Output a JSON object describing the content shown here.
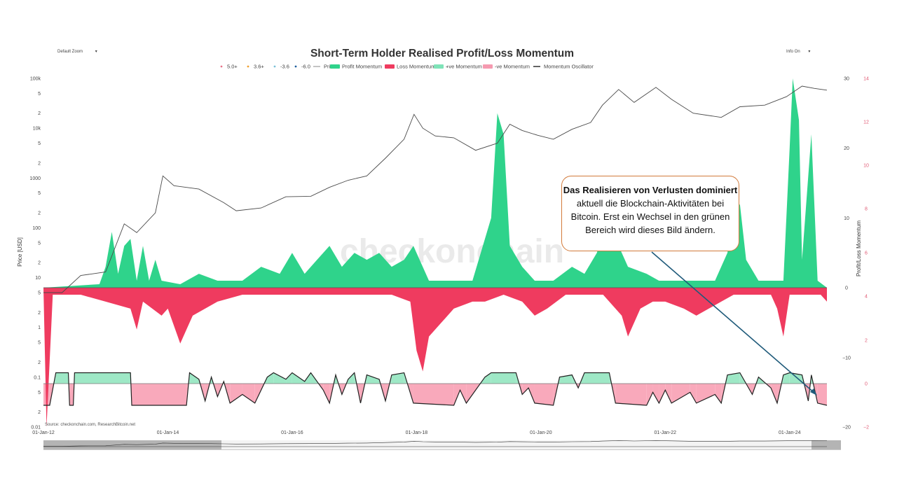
{
  "controls": {
    "zoom_label": "Default Zoom",
    "info_label": "Info On"
  },
  "chart_data": {
    "type": "line",
    "title": "Short-Term Holder Realised Profit/Loss Momentum",
    "legend": [
      {
        "name": "5.0+",
        "color": "#e8748a",
        "kind": "dot"
      },
      {
        "name": "3.6+",
        "color": "#f0a030",
        "kind": "dot"
      },
      {
        "name": "-3.6",
        "color": "#7ac0d8",
        "kind": "dot"
      },
      {
        "name": "-6.0",
        "color": "#1f5f9e",
        "kind": "dot"
      },
      {
        "name": "Price",
        "color": "#aaaaaa",
        "kind": "line"
      },
      {
        "name": "Profit Momentum",
        "color": "#2fd38b",
        "kind": "bar"
      },
      {
        "name": "Loss Momentum",
        "color": "#ef3b5f",
        "kind": "bar"
      },
      {
        "name": "+ve Momentum",
        "color": "#7fe3b8",
        "kind": "bar"
      },
      {
        "name": "-ve Momentum",
        "color": "#f59ab0",
        "kind": "bar"
      },
      {
        "name": "Momentum Oscillator",
        "color": "#222222",
        "kind": "line"
      }
    ],
    "x_ticks": [
      "01-Jan-12",
      "01-Jan-14",
      "01-Jan-16",
      "01-Jan-18",
      "01-Jan-20",
      "01-Jan-22",
      "01-Jan-24"
    ],
    "y_left": {
      "label": "Price [USD]",
      "scale": "log",
      "ticks": [
        "100k",
        "5",
        "2",
        "10k",
        "5",
        "2",
        "1000",
        "5",
        "2",
        "100",
        "5",
        "2",
        "10",
        "5",
        "2",
        "1",
        "5",
        "2",
        "0.1",
        "5",
        "2",
        "0.01"
      ]
    },
    "y_right_outer": {
      "label": "Profit/Loss Momentum",
      "ticks": [
        "14",
        "12",
        "10",
        "8",
        "6",
        "4",
        "2",
        "0",
        "−2"
      ]
    },
    "y_right_inner": {
      "ticks": [
        "30",
        "20",
        "10",
        "0",
        "−10",
        "−20"
      ]
    },
    "price": [
      [
        2012.0,
        5
      ],
      [
        2012.3,
        5
      ],
      [
        2012.6,
        11
      ],
      [
        2013.0,
        13
      ],
      [
        2013.3,
        120
      ],
      [
        2013.5,
        80
      ],
      [
        2013.8,
        200
      ],
      [
        2013.92,
        1100
      ],
      [
        2014.1,
        700
      ],
      [
        2014.5,
        600
      ],
      [
        2014.9,
        320
      ],
      [
        2015.1,
        220
      ],
      [
        2015.5,
        250
      ],
      [
        2015.9,
        420
      ],
      [
        2016.3,
        430
      ],
      [
        2016.6,
        650
      ],
      [
        2016.9,
        900
      ],
      [
        2017.2,
        1100
      ],
      [
        2017.5,
        2500
      ],
      [
        2017.8,
        6000
      ],
      [
        2017.96,
        19000
      ],
      [
        2018.1,
        10000
      ],
      [
        2018.3,
        7000
      ],
      [
        2018.6,
        6400
      ],
      [
        2018.95,
        3600
      ],
      [
        2019.3,
        5000
      ],
      [
        2019.5,
        12000
      ],
      [
        2019.7,
        9000
      ],
      [
        2019.95,
        7200
      ],
      [
        2020.2,
        6000
      ],
      [
        2020.5,
        9500
      ],
      [
        2020.8,
        13000
      ],
      [
        2020.99,
        29000
      ],
      [
        2021.25,
        60000
      ],
      [
        2021.5,
        33000
      ],
      [
        2021.85,
        66000
      ],
      [
        2022.1,
        38000
      ],
      [
        2022.45,
        20000
      ],
      [
        2022.9,
        16500
      ],
      [
        2023.2,
        27000
      ],
      [
        2023.6,
        29000
      ],
      [
        2023.95,
        43000
      ],
      [
        2024.2,
        70000
      ],
      [
        2024.4,
        63000
      ],
      [
        2024.6,
        58000
      ]
    ],
    "momentum_range": [
      -20,
      30
    ],
    "profit_momentum": [
      [
        2012.0,
        0
      ],
      [
        2012.9,
        0.5
      ],
      [
        2013.0,
        3
      ],
      [
        2013.1,
        8
      ],
      [
        2013.2,
        2
      ],
      [
        2013.3,
        6
      ],
      [
        2013.4,
        7
      ],
      [
        2013.5,
        1
      ],
      [
        2013.6,
        6
      ],
      [
        2013.7,
        1
      ],
      [
        2013.8,
        4
      ],
      [
        2013.9,
        1
      ],
      [
        2014.2,
        0.5
      ],
      [
        2014.5,
        2
      ],
      [
        2014.8,
        1
      ],
      [
        2015.2,
        1
      ],
      [
        2015.5,
        3
      ],
      [
        2015.8,
        2
      ],
      [
        2016.0,
        5
      ],
      [
        2016.2,
        2
      ],
      [
        2016.4,
        4
      ],
      [
        2016.6,
        6
      ],
      [
        2016.8,
        3
      ],
      [
        2017.0,
        5
      ],
      [
        2017.2,
        4
      ],
      [
        2017.4,
        5
      ],
      [
        2017.6,
        3
      ],
      [
        2017.8,
        4
      ],
      [
        2017.95,
        6
      ],
      [
        2018.2,
        1
      ],
      [
        2018.6,
        1
      ],
      [
        2018.9,
        1
      ],
      [
        2019.2,
        10
      ],
      [
        2019.3,
        25
      ],
      [
        2019.4,
        22
      ],
      [
        2019.5,
        6
      ],
      [
        2019.7,
        3
      ],
      [
        2019.9,
        1
      ],
      [
        2020.2,
        1
      ],
      [
        2020.5,
        3
      ],
      [
        2020.7,
        2
      ],
      [
        2020.9,
        5
      ],
      [
        2021.0,
        8
      ],
      [
        2021.2,
        7
      ],
      [
        2021.4,
        3
      ],
      [
        2021.7,
        2
      ],
      [
        2021.9,
        1
      ],
      [
        2022.2,
        1
      ],
      [
        2022.5,
        1
      ],
      [
        2022.8,
        1
      ],
      [
        2023.0,
        5
      ],
      [
        2023.1,
        10
      ],
      [
        2023.2,
        12
      ],
      [
        2023.3,
        4
      ],
      [
        2023.5,
        1
      ],
      [
        2023.9,
        1
      ],
      [
        2024.0,
        20
      ],
      [
        2024.05,
        30
      ],
      [
        2024.15,
        24
      ],
      [
        2024.2,
        4
      ],
      [
        2024.35,
        22
      ],
      [
        2024.45,
        1
      ],
      [
        2024.6,
        0
      ]
    ],
    "loss_momentum": [
      [
        2012.0,
        0
      ],
      [
        2012.05,
        -20
      ],
      [
        2012.15,
        -1
      ],
      [
        2012.6,
        -1
      ],
      [
        2013.0,
        -2
      ],
      [
        2013.4,
        -3
      ],
      [
        2013.5,
        -6
      ],
      [
        2013.6,
        -2
      ],
      [
        2013.9,
        -4
      ],
      [
        2014.0,
        -3
      ],
      [
        2014.2,
        -8
      ],
      [
        2014.3,
        -6
      ],
      [
        2014.4,
        -4
      ],
      [
        2014.6,
        -3
      ],
      [
        2014.8,
        -2
      ],
      [
        2015.2,
        -1
      ],
      [
        2015.6,
        -1
      ],
      [
        2016.0,
        -1
      ],
      [
        2016.5,
        -1
      ],
      [
        2017.0,
        -1
      ],
      [
        2017.6,
        -1
      ],
      [
        2017.9,
        -2
      ],
      [
        2018.0,
        -9
      ],
      [
        2018.1,
        -12
      ],
      [
        2018.2,
        -7
      ],
      [
        2018.4,
        -5
      ],
      [
        2018.6,
        -3
      ],
      [
        2018.9,
        -2
      ],
      [
        2019.1,
        -2
      ],
      [
        2019.4,
        -1
      ],
      [
        2019.7,
        -2
      ],
      [
        2019.9,
        -4
      ],
      [
        2020.1,
        -3
      ],
      [
        2020.4,
        -1
      ],
      [
        2020.8,
        -1
      ],
      [
        2021.0,
        -1
      ],
      [
        2021.3,
        -4
      ],
      [
        2021.4,
        -7
      ],
      [
        2021.6,
        -3
      ],
      [
        2021.8,
        -2
      ],
      [
        2022.0,
        -2
      ],
      [
        2022.3,
        -3
      ],
      [
        2022.5,
        -4
      ],
      [
        2022.7,
        -3
      ],
      [
        2022.9,
        -2
      ],
      [
        2023.1,
        -1
      ],
      [
        2023.4,
        -1
      ],
      [
        2023.7,
        -1
      ],
      [
        2023.8,
        -3
      ],
      [
        2023.9,
        -7
      ],
      [
        2024.0,
        -1
      ],
      [
        2024.3,
        -1
      ],
      [
        2024.5,
        -1
      ],
      [
        2024.6,
        -2
      ]
    ],
    "oscillator": [
      [
        2012.0,
        -1
      ],
      [
        2012.1,
        -1
      ],
      [
        2012.2,
        0.5
      ],
      [
        2012.4,
        0.5
      ],
      [
        2012.42,
        -1
      ],
      [
        2012.48,
        -1
      ],
      [
        2012.5,
        0.5
      ],
      [
        2013.4,
        0.5
      ],
      [
        2013.42,
        -1
      ],
      [
        2014.3,
        -1
      ],
      [
        2014.35,
        0.5
      ],
      [
        2014.5,
        0.2
      ],
      [
        2014.6,
        -0.8
      ],
      [
        2014.7,
        0.3
      ],
      [
        2014.8,
        -0.6
      ],
      [
        2014.9,
        0.1
      ],
      [
        2015.0,
        -0.9
      ],
      [
        2015.2,
        -0.5
      ],
      [
        2015.4,
        -0.9
      ],
      [
        2015.6,
        0.3
      ],
      [
        2015.7,
        0.5
      ],
      [
        2015.9,
        0.2
      ],
      [
        2016.0,
        0.5
      ],
      [
        2016.2,
        0.1
      ],
      [
        2016.3,
        0.5
      ],
      [
        2016.5,
        -0.3
      ],
      [
        2016.6,
        -0.9
      ],
      [
        2016.7,
        0.4
      ],
      [
        2016.8,
        -0.5
      ],
      [
        2016.9,
        0.2
      ],
      [
        2017.0,
        0.5
      ],
      [
        2017.1,
        -0.9
      ],
      [
        2017.2,
        0.4
      ],
      [
        2017.4,
        0.2
      ],
      [
        2017.5,
        -0.8
      ],
      [
        2017.6,
        0.4
      ],
      [
        2017.8,
        0.5
      ],
      [
        2017.95,
        -0.9
      ],
      [
        2018.6,
        -1
      ],
      [
        2018.7,
        -0.3
      ],
      [
        2018.8,
        -0.9
      ],
      [
        2019.1,
        0.3
      ],
      [
        2019.2,
        0.5
      ],
      [
        2019.6,
        0.5
      ],
      [
        2019.7,
        -0.5
      ],
      [
        2019.8,
        -0.2
      ],
      [
        2019.9,
        -0.9
      ],
      [
        2020.2,
        -1
      ],
      [
        2020.3,
        0.3
      ],
      [
        2020.5,
        0.4
      ],
      [
        2020.6,
        -0.2
      ],
      [
        2020.7,
        0.5
      ],
      [
        2021.1,
        0.5
      ],
      [
        2021.2,
        -0.9
      ],
      [
        2021.7,
        -1
      ],
      [
        2021.8,
        -0.4
      ],
      [
        2021.9,
        -0.9
      ],
      [
        2022.0,
        -0.3
      ],
      [
        2022.1,
        -0.9
      ],
      [
        2022.4,
        -0.4
      ],
      [
        2022.5,
        -0.9
      ],
      [
        2022.8,
        -0.5
      ],
      [
        2022.9,
        -0.9
      ],
      [
        2023.0,
        0.4
      ],
      [
        2023.2,
        0.5
      ],
      [
        2023.4,
        -0.5
      ],
      [
        2023.5,
        0.3
      ],
      [
        2023.7,
        -0.2
      ],
      [
        2023.8,
        -0.9
      ],
      [
        2023.9,
        0.4
      ],
      [
        2024.0,
        0.5
      ],
      [
        2024.2,
        0.4
      ],
      [
        2024.3,
        -0.8
      ],
      [
        2024.35,
        0.4
      ],
      [
        2024.45,
        -0.9
      ],
      [
        2024.6,
        -1
      ]
    ],
    "watermark": "checkonchain",
    "source": "Source: checkonchain.com, ResearchBitcoin.net",
    "annotation": {
      "bold": "Das Realisieren von Verlusten dominiert",
      "rest": " aktuell die Blockchain-Aktivitäten bei Bitcoin. Erst ein Wechsel in den grünen Bereich wird dieses Bild ändern."
    }
  }
}
